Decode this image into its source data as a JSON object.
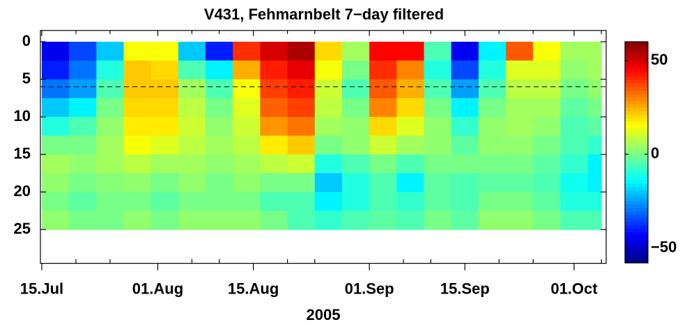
{
  "chart_data": {
    "type": "heatmap",
    "title": "V431, Fehmarnbelt 7−day filtered",
    "x_label": "2005",
    "xlim": [
      195.8,
      278.7
    ],
    "xticks": [
      {
        "value": 196,
        "label": "15.Jul"
      },
      {
        "value": 213,
        "label": "01.Aug"
      },
      {
        "value": 227,
        "label": "15.Aug"
      },
      {
        "value": 244,
        "label": "01.Sep"
      },
      {
        "value": 258,
        "label": "15.Sep"
      },
      {
        "value": 274,
        "label": "01.Oct"
      }
    ],
    "xminor_ticks": [
      201,
      206,
      218,
      222,
      232,
      236,
      249,
      253,
      263,
      268,
      278
    ],
    "ylim": [
      -1.5,
      29.5
    ],
    "y_inverted": true,
    "yticks": [
      0,
      5,
      10,
      15,
      20,
      25
    ],
    "hline": 6,
    "xbins": [
      196,
      200,
      204,
      208,
      212,
      216,
      220,
      224,
      228,
      232,
      236,
      240,
      244,
      248,
      252,
      256,
      260,
      264,
      268,
      272,
      276,
      278
    ],
    "ybins": [
      0,
      2.5,
      5,
      7.5,
      10,
      12.5,
      15,
      17.5,
      20,
      22.5,
      25
    ],
    "z": [
      [
        -45,
        -40,
        -30,
        -20,
        -10,
        0,
        5,
        3,
        0,
        3
      ],
      [
        -35,
        -30,
        -25,
        -15,
        -5,
        0,
        3,
        0,
        -3,
        0
      ],
      [
        -20,
        -10,
        -5,
        0,
        3,
        5,
        5,
        2,
        0,
        0
      ],
      [
        15,
        22,
        22,
        20,
        18,
        15,
        8,
        3,
        0,
        3
      ],
      [
        15,
        20,
        22,
        20,
        18,
        12,
        5,
        0,
        -3,
        0
      ],
      [
        -20,
        -5,
        5,
        8,
        10,
        8,
        5,
        3,
        0,
        3
      ],
      [
        -40,
        -15,
        -5,
        0,
        3,
        5,
        3,
        0,
        0,
        3
      ],
      [
        40,
        25,
        15,
        12,
        10,
        8,
        5,
        3,
        0,
        3
      ],
      [
        50,
        42,
        38,
        34,
        28,
        18,
        8,
        0,
        -5,
        0
      ],
      [
        55,
        48,
        42,
        38,
        32,
        22,
        10,
        0,
        -5,
        -5
      ],
      [
        20,
        15,
        10,
        8,
        5,
        0,
        -10,
        -20,
        -15,
        -8
      ],
      [
        5,
        0,
        -5,
        0,
        3,
        3,
        -5,
        -10,
        -10,
        -5
      ],
      [
        45,
        40,
        35,
        30,
        20,
        10,
        0,
        -5,
        -5,
        -3
      ],
      [
        45,
        30,
        25,
        20,
        12,
        5,
        -5,
        -15,
        -8,
        -5
      ],
      [
        -5,
        -10,
        -5,
        0,
        3,
        3,
        0,
        -3,
        -3,
        0
      ],
      [
        -45,
        -35,
        -25,
        -15,
        -8,
        -3,
        0,
        -5,
        -5,
        -3
      ],
      [
        -15,
        -10,
        -5,
        0,
        3,
        3,
        0,
        -3,
        0,
        3
      ],
      [
        35,
        12,
        8,
        5,
        5,
        3,
        0,
        -3,
        0,
        3
      ],
      [
        15,
        12,
        8,
        5,
        3,
        0,
        -3,
        -5,
        -3,
        0
      ],
      [
        5,
        3,
        0,
        -3,
        -5,
        -5,
        -8,
        -12,
        -10,
        -5
      ],
      [
        5,
        5,
        3,
        0,
        -3,
        -8,
        -15,
        -15,
        -10,
        -5
      ]
    ],
    "colormap": "jet",
    "clim": [
      -58,
      60
    ],
    "cticks": [
      50,
      0,
      {
        "value": -50,
        "label": "−50"
      }
    ]
  }
}
